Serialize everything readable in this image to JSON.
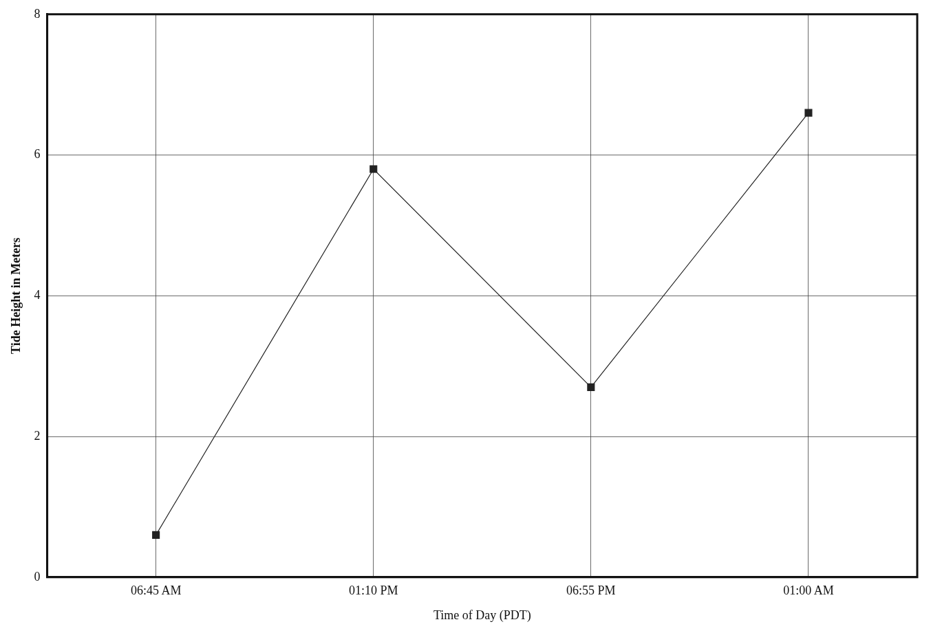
{
  "chart_data": {
    "type": "line",
    "xlabel": "Time of Day (PDT)",
    "ylabel": "Tide Height in Meters",
    "categories": [
      "06:45 AM",
      "01:10 PM",
      "06:55 PM",
      "01:00 AM"
    ],
    "series": [
      {
        "color": "#222222",
        "values": [
          0.6,
          5.8,
          2.7,
          6.6
        ]
      }
    ],
    "ylim": [
      0,
      8
    ],
    "yticks": [
      0,
      2,
      4,
      6,
      8
    ],
    "grid": true,
    "legend": false,
    "marker": "square",
    "line_style": "solid"
  }
}
